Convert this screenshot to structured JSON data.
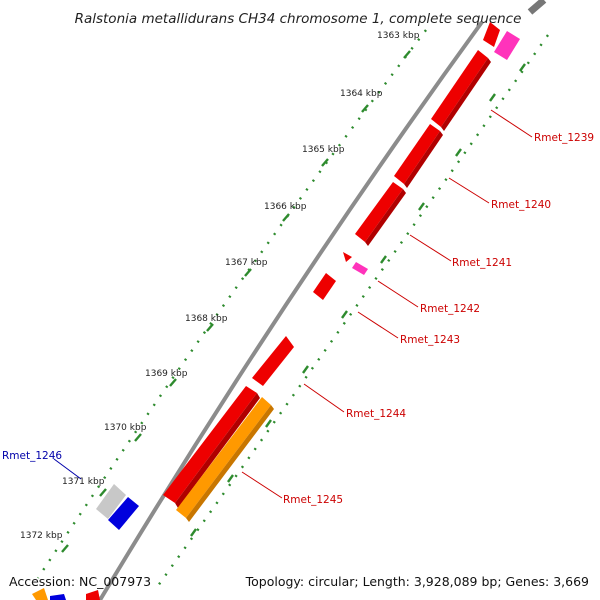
{
  "title": "Ralstonia metallidurans CH34 chromosome 1, complete sequence",
  "footer": {
    "accession": "Accession: NC_007973",
    "summary": "Topology: circular; Length: 3,928,089 bp; Genes: 3,669"
  },
  "colors": {
    "backbone": "#8c8c8c",
    "ticks": "#2e8b2e",
    "gene_red": "#ee0000",
    "gene_pink": "#ff33bb",
    "gene_orange": "#ff9900",
    "gene_blue": "#0000dd",
    "gene_grey": "#c8c8c8",
    "label_red": "#cc0000",
    "label_blue": "#0000aa"
  },
  "scale_labels": [
    "1363 kbp",
    "1364 kbp",
    "1365 kbp",
    "1366 kbp",
    "1367 kbp",
    "1368 kbp",
    "1369 kbp",
    "1370 kbp",
    "1371 kbp",
    "1372 kbp"
  ],
  "gene_labels": [
    {
      "name": "Rmet_1239",
      "color": "red"
    },
    {
      "name": "Rmet_1240",
      "color": "red"
    },
    {
      "name": "Rmet_1241",
      "color": "red"
    },
    {
      "name": "Rmet_1242",
      "color": "red"
    },
    {
      "name": "Rmet_1243",
      "color": "red"
    },
    {
      "name": "Rmet_1244",
      "color": "red"
    },
    {
      "name": "Rmet_1245",
      "color": "red"
    },
    {
      "name": "Rmet_1246",
      "color": "blue"
    }
  ]
}
